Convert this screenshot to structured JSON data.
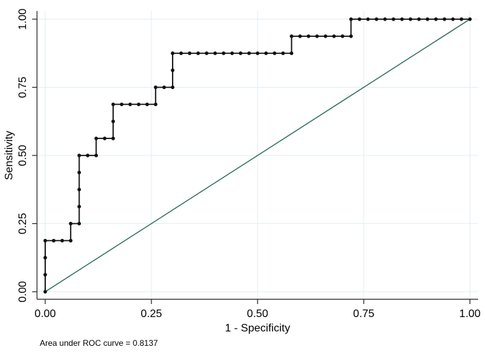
{
  "chart_data": {
    "type": "line",
    "title": "",
    "xlabel": "1 - Specificity",
    "ylabel": "Sensitivity",
    "xlim": [
      0,
      1
    ],
    "ylim": [
      0,
      1
    ],
    "xticks": [
      "0.00",
      "0.25",
      "0.50",
      "0.75",
      "1.00"
    ],
    "yticks": [
      "0.00",
      "0.25",
      "0.50",
      "0.75",
      "1.00"
    ],
    "grid": true,
    "legend": null,
    "annotation": "Area under ROC curve = 0.8137",
    "auc": 0.8137,
    "colors": {
      "roc": "#111111",
      "reference": "#2b6b56",
      "grid": "#e3eef2",
      "axis": "#222222"
    },
    "series": [
      {
        "name": "ROC curve",
        "style": "step line with markers",
        "points": [
          [
            0,
            0
          ],
          [
            0,
            0.0625
          ],
          [
            0,
            0.125
          ],
          [
            0,
            0.1875
          ],
          [
            0.02,
            0.1875
          ],
          [
            0.04,
            0.1875
          ],
          [
            0.06,
            0.1875
          ],
          [
            0.06,
            0.25
          ],
          [
            0.08,
            0.25
          ],
          [
            0.08,
            0.3125
          ],
          [
            0.08,
            0.375
          ],
          [
            0.08,
            0.4375
          ],
          [
            0.08,
            0.5
          ],
          [
            0.1,
            0.5
          ],
          [
            0.12,
            0.5
          ],
          [
            0.12,
            0.5625
          ],
          [
            0.14,
            0.5625
          ],
          [
            0.16,
            0.5625
          ],
          [
            0.16,
            0.625
          ],
          [
            0.16,
            0.6875
          ],
          [
            0.18,
            0.6875
          ],
          [
            0.2,
            0.6875
          ],
          [
            0.22,
            0.6875
          ],
          [
            0.24,
            0.6875
          ],
          [
            0.26,
            0.6875
          ],
          [
            0.26,
            0.75
          ],
          [
            0.28,
            0.75
          ],
          [
            0.3,
            0.75
          ],
          [
            0.3,
            0.8125
          ],
          [
            0.3,
            0.875
          ],
          [
            0.32,
            0.875
          ],
          [
            0.34,
            0.875
          ],
          [
            0.36,
            0.875
          ],
          [
            0.38,
            0.875
          ],
          [
            0.4,
            0.875
          ],
          [
            0.42,
            0.875
          ],
          [
            0.44,
            0.875
          ],
          [
            0.46,
            0.875
          ],
          [
            0.48,
            0.875
          ],
          [
            0.5,
            0.875
          ],
          [
            0.52,
            0.875
          ],
          [
            0.54,
            0.875
          ],
          [
            0.56,
            0.875
          ],
          [
            0.58,
            0.875
          ],
          [
            0.58,
            0.9375
          ],
          [
            0.6,
            0.9375
          ],
          [
            0.62,
            0.9375
          ],
          [
            0.64,
            0.9375
          ],
          [
            0.66,
            0.9375
          ],
          [
            0.68,
            0.9375
          ],
          [
            0.7,
            0.9375
          ],
          [
            0.72,
            0.9375
          ],
          [
            0.72,
            1.0
          ],
          [
            0.74,
            1.0
          ],
          [
            0.76,
            1.0
          ],
          [
            0.78,
            1.0
          ],
          [
            0.8,
            1.0
          ],
          [
            0.82,
            1.0
          ],
          [
            0.84,
            1.0
          ],
          [
            0.86,
            1.0
          ],
          [
            0.88,
            1.0
          ],
          [
            0.9,
            1.0
          ],
          [
            0.92,
            1.0
          ],
          [
            0.94,
            1.0
          ],
          [
            0.96,
            1.0
          ],
          [
            0.98,
            1.0
          ],
          [
            1.0,
            1.0
          ]
        ]
      },
      {
        "name": "Reference line",
        "style": "line",
        "points": [
          [
            0,
            0
          ],
          [
            1,
            1
          ]
        ]
      }
    ]
  }
}
